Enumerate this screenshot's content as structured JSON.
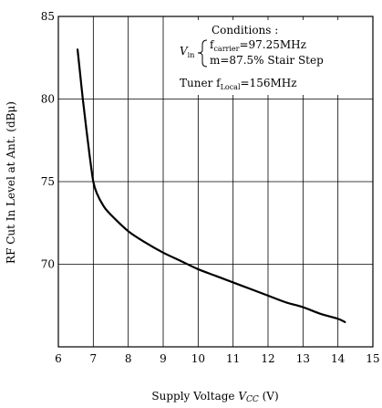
{
  "chart_data": {
    "type": "line",
    "xlabel_main": "Supply Voltage ",
    "xlabel_var": "V",
    "xlabel_sub": "CC",
    "xlabel_unit": " (V)",
    "ylabel": "RF Cut In Level at Ant. (dBμ)",
    "xlim": [
      6,
      15
    ],
    "ylim": [
      65,
      85
    ],
    "x_ticks": [
      "6",
      "7",
      "8",
      "9",
      "10",
      "11",
      "12",
      "13",
      "14",
      "15"
    ],
    "y_ticks": [
      {
        "value": 70,
        "label": "70"
      },
      {
        "value": 75,
        "label": "75"
      },
      {
        "value": 80,
        "label": "80"
      },
      {
        "value": 85,
        "label": "85"
      }
    ],
    "grid": true,
    "series": [
      {
        "x": [
          6.55,
          6.6,
          6.7,
          6.8,
          6.9,
          7.0,
          7.1,
          7.3,
          7.5,
          8.0,
          8.5,
          9.0,
          9.5,
          10.0,
          10.5,
          11.0,
          11.5,
          12.0,
          12.5,
          13.0,
          13.5,
          14.0,
          14.2
        ],
        "y": [
          83.0,
          82.0,
          80.0,
          78.2,
          76.5,
          75.0,
          74.3,
          73.5,
          73.0,
          72.0,
          71.3,
          70.7,
          70.2,
          69.7,
          69.3,
          68.9,
          68.5,
          68.1,
          67.7,
          67.4,
          67.0,
          66.7,
          66.5
        ]
      }
    ],
    "conditions": {
      "title": "Conditions :",
      "v_label": "V",
      "v_sub": "in",
      "line1_prefix": "f",
      "line1_sub": "carrier",
      "line1_value": "=97.25MHz",
      "line2": "m=87.5% Stair Step",
      "line3_prefix": "Tuner f",
      "line3_sub": "Local",
      "line3_value": "=156MHz"
    }
  }
}
